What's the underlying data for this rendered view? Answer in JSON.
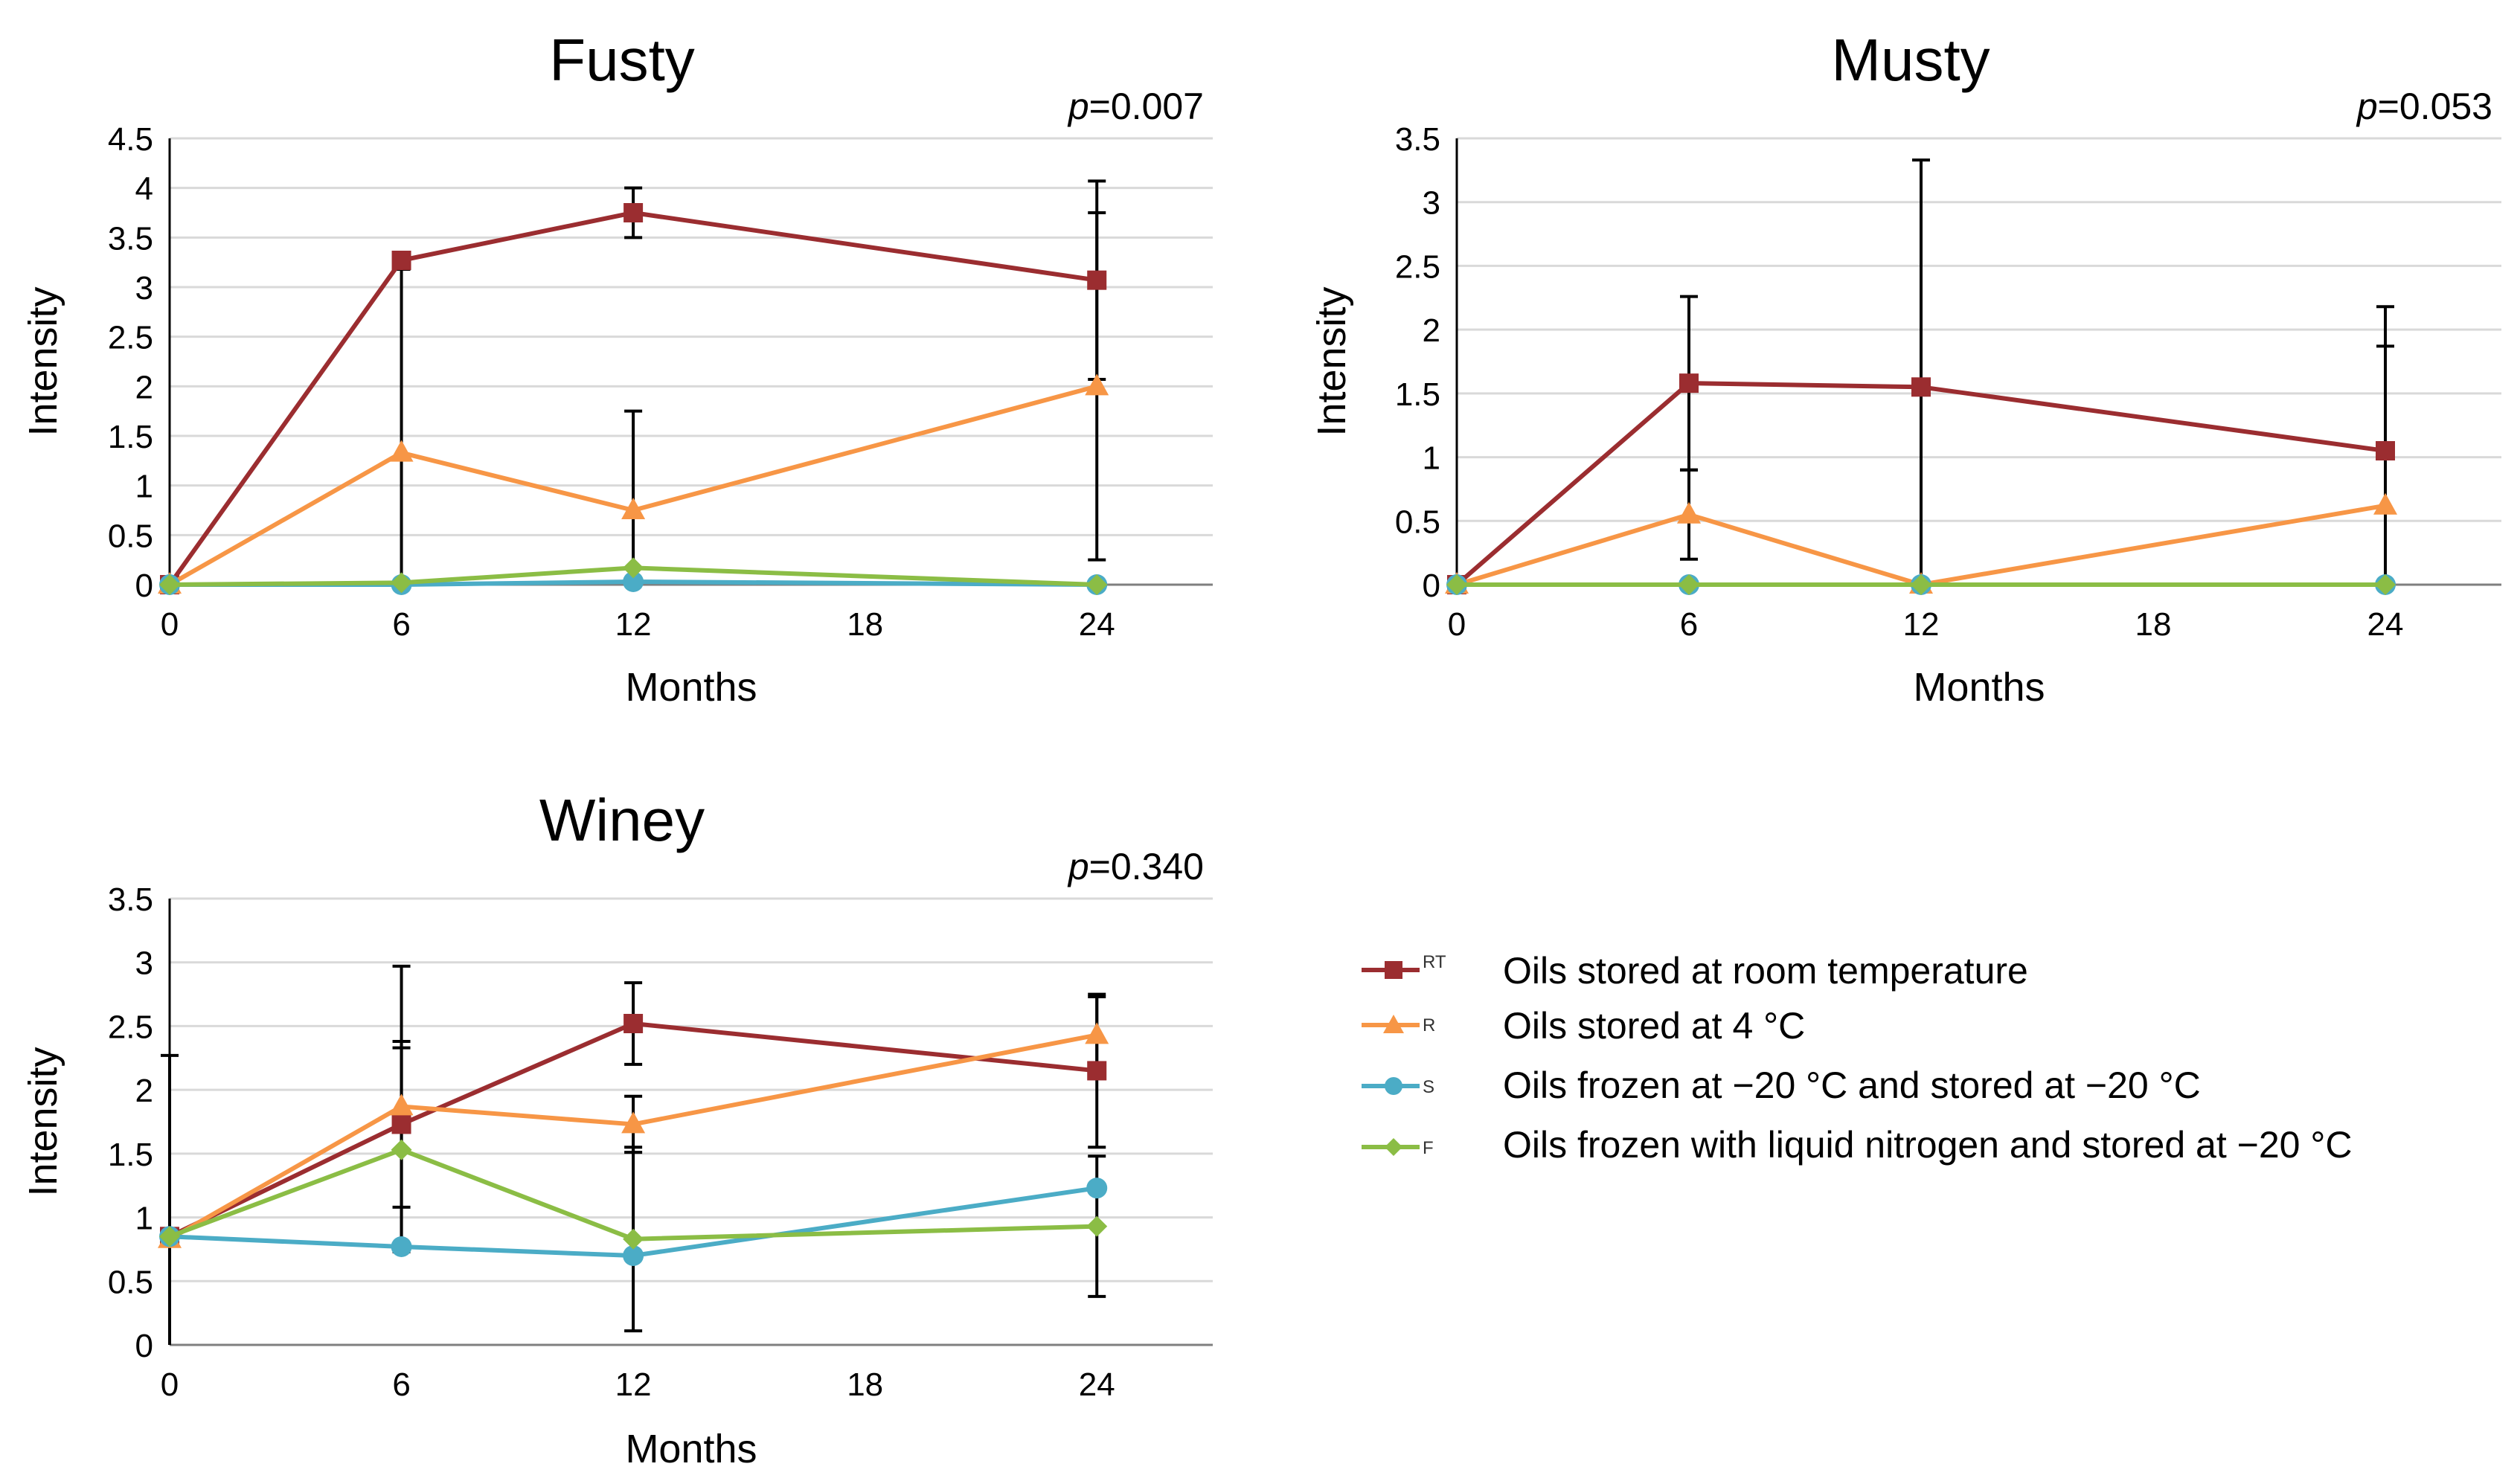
{
  "figure": {
    "legend": [
      {
        "code": "RT",
        "label": "Oils stored at room temperature"
      },
      {
        "code": "R",
        "label": "Oils stored at 4 °C"
      },
      {
        "code": "S",
        "label": "Oils frozen at −20 °C and stored at −20 °C"
      },
      {
        "code": "F",
        "label": "Oils frozen with liquid nitrogen and stored at −20 °C"
      }
    ]
  },
  "chart_data": [
    {
      "type": "line",
      "title": "Fusty",
      "p_prefix": "p",
      "p_value": "=0.007",
      "xlabel": "Months",
      "ylabel": "Intensity",
      "xlim": [
        0,
        27
      ],
      "xticks": [
        "0",
        "6",
        "12",
        "18",
        "24"
      ],
      "ylim": [
        0,
        4.5
      ],
      "yticks": [
        "0",
        "0.5",
        "1",
        "1.5",
        "2",
        "2.5",
        "3",
        "3.5",
        "4",
        "4.5"
      ],
      "x": [
        0,
        6,
        12,
        24
      ],
      "series": [
        {
          "name": "RT",
          "color": "#9b2d30",
          "marker": "square",
          "values": [
            0,
            3.27,
            3.75,
            3.07
          ],
          "errors": [
            0,
            0,
            0.25,
            1.0
          ]
        },
        {
          "name": "R",
          "color": "#f79646",
          "marker": "triangle",
          "values": [
            0,
            1.33,
            0.75,
            2.0
          ],
          "errors": [
            0,
            1.85,
            1.0,
            1.75
          ]
        },
        {
          "name": "S",
          "color": "#4bacc6",
          "marker": "circle",
          "values": [
            0,
            0,
            0.03,
            0
          ],
          "errors": [
            0,
            0,
            0,
            0
          ]
        },
        {
          "name": "F",
          "color": "#8bbd45",
          "marker": "diamond",
          "values": [
            0,
            0.02,
            0.17,
            0
          ],
          "errors": [
            0,
            0,
            0,
            0
          ]
        }
      ]
    },
    {
      "type": "line",
      "title": "Musty",
      "p_prefix": "p",
      "p_value": "=0.053",
      "xlabel": "Months",
      "ylabel": "Intensity",
      "xlim": [
        0,
        27
      ],
      "xticks": [
        "0",
        "6",
        "12",
        "18",
        "24"
      ],
      "ylim": [
        0,
        3.5
      ],
      "yticks": [
        "0",
        "0.5",
        "1",
        "1.5",
        "2",
        "2.5",
        "3",
        "3.5"
      ],
      "x": [
        0,
        6,
        12,
        24
      ],
      "series": [
        {
          "name": "RT",
          "color": "#9b2d30",
          "marker": "square",
          "values": [
            0,
            1.58,
            1.55,
            1.05
          ],
          "errors": [
            0,
            0.68,
            1.78,
            1.13
          ]
        },
        {
          "name": "R",
          "color": "#f79646",
          "marker": "triangle",
          "values": [
            0,
            0.55,
            0,
            0.62
          ],
          "errors": [
            0,
            0.35,
            0,
            1.25
          ]
        },
        {
          "name": "S",
          "color": "#4bacc6",
          "marker": "circle",
          "values": [
            0,
            0,
            0,
            0
          ],
          "errors": [
            0,
            0,
            0,
            0
          ]
        },
        {
          "name": "F",
          "color": "#8bbd45",
          "marker": "diamond",
          "values": [
            0,
            0,
            0,
            0
          ],
          "errors": [
            0,
            0,
            0,
            0
          ]
        }
      ]
    },
    {
      "type": "line",
      "title": "Winey",
      "p_prefix": "p",
      "p_value": "=0.340",
      "xlabel": "Months",
      "ylabel": "Intensity",
      "xlim": [
        0,
        27
      ],
      "xticks": [
        "0",
        "6",
        "12",
        "18",
        "24"
      ],
      "ylim": [
        0,
        3.5
      ],
      "yticks": [
        "0",
        "0.5",
        "1",
        "1.5",
        "2",
        "2.5",
        "3",
        "3.5"
      ],
      "x": [
        0,
        6,
        12,
        24
      ],
      "series": [
        {
          "name": "RT",
          "color": "#9b2d30",
          "marker": "square",
          "values": [
            0.85,
            1.73,
            2.52,
            2.15
          ],
          "errors": [
            1.42,
            0.65,
            0.32,
            0.6
          ]
        },
        {
          "name": "R",
          "color": "#f79646",
          "marker": "triangle",
          "values": [
            0.83,
            1.87,
            1.73,
            2.43
          ],
          "errors": [
            0,
            1.1,
            0.22,
            0.3
          ]
        },
        {
          "name": "S",
          "color": "#4bacc6",
          "marker": "circle",
          "values": [
            0.85,
            0.77,
            0.7,
            1.23
          ],
          "errors": [
            0,
            0,
            0,
            0
          ]
        },
        {
          "name": "F",
          "color": "#8bbd45",
          "marker": "diamond",
          "values": [
            0.85,
            1.53,
            0.83,
            0.93
          ],
          "errors": [
            0,
            0.8,
            0.72,
            0.55
          ]
        }
      ]
    }
  ]
}
